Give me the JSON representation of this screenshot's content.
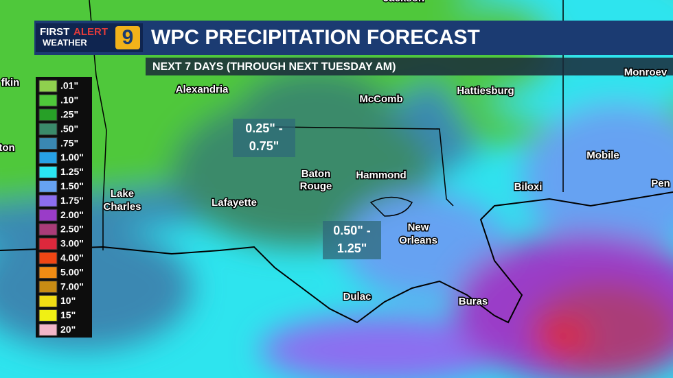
{
  "header": {
    "logo": {
      "first": "FIRST",
      "alert": "ALERT",
      "weather": "WEATHER",
      "channel": "9"
    },
    "title": "WPC PRECIPITATION FORECAST",
    "subtitle": "NEXT 7 DAYS (THROUGH NEXT TUESDAY AM)"
  },
  "legend": {
    "items": [
      {
        "label": ".01\"",
        "color": "#8fd04e"
      },
      {
        "label": ".10\"",
        "color": "#4fc83a"
      },
      {
        "label": ".25\"",
        "color": "#27a027"
      },
      {
        "label": ".50\"",
        "color": "#3a8a6a"
      },
      {
        "label": ".75\"",
        "color": "#3a88b2"
      },
      {
        "label": "1.00\"",
        "color": "#27a2e6"
      },
      {
        "label": "1.25\"",
        "color": "#2ae6f2"
      },
      {
        "label": "1.50\"",
        "color": "#66a2f2"
      },
      {
        "label": "1.75\"",
        "color": "#8c6ef0"
      },
      {
        "label": "2.00\"",
        "color": "#9a3cc8"
      },
      {
        "label": "2.50\"",
        "color": "#aa3c78"
      },
      {
        "label": "3.00\"",
        "color": "#dc283c"
      },
      {
        "label": "4.00\"",
        "color": "#f04614"
      },
      {
        "label": "5.00\"",
        "color": "#f08c14"
      },
      {
        "label": "7.00\"",
        "color": "#c88c14"
      },
      {
        "label": "10\"",
        "color": "#f0dc14"
      },
      {
        "label": "15\"",
        "color": "#f0f014"
      },
      {
        "label": "20\"",
        "color": "#f2b6c8"
      }
    ]
  },
  "cities": [
    "Jackson",
    "Alexandria",
    "McComb",
    "Hattiesburg",
    "Monroev",
    "fkin",
    "ton",
    "Baton",
    "Rouge",
    "Hammond",
    "Lake",
    "Charles",
    "Lafayette",
    "Mobile",
    "Biloxi",
    "Pen",
    "New",
    "Orleans",
    "Dulac",
    "Buras"
  ],
  "annotations": [
    {
      "lines": [
        "0.25\" -",
        "0.75\""
      ]
    },
    {
      "lines": [
        "0.50\" -",
        "1.25\""
      ]
    }
  ]
}
